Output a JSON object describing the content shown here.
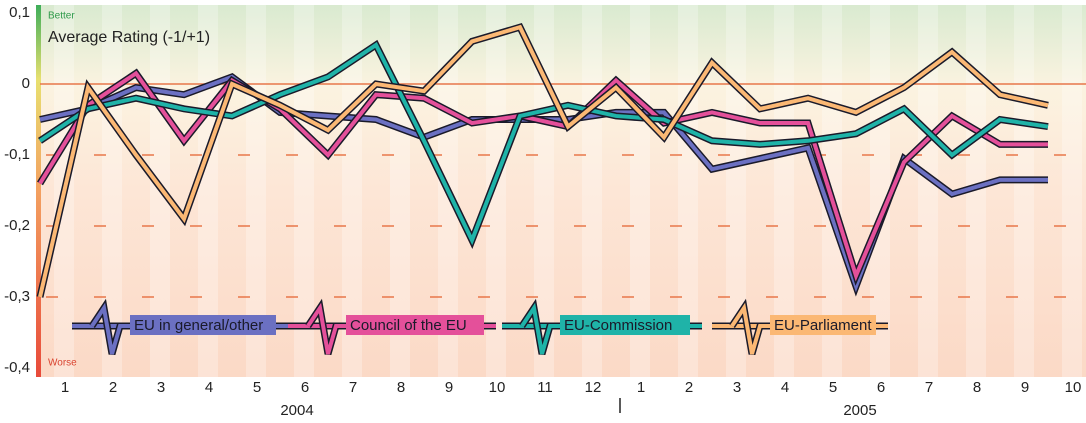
{
  "chart_data": {
    "type": "line",
    "title": "Average Rating (-1/+1)",
    "top_label": "Better",
    "bottom_label": "Worse",
    "categories": [
      "1",
      "2",
      "3",
      "4",
      "5",
      "6",
      "7",
      "8",
      "9",
      "10",
      "11",
      "12",
      "1",
      "2",
      "3",
      "4",
      "5",
      "6",
      "7",
      "8",
      "9",
      "10"
    ],
    "years": [
      "2004",
      "2005"
    ],
    "series": [
      {
        "name": "EU in general/other",
        "color": "#6b70c2",
        "values": [
          -0.05,
          -0.035,
          -0.005,
          -0.015,
          0.01,
          -0.04,
          -0.045,
          -0.05,
          -0.075,
          -0.05,
          -0.05,
          -0.05,
          -0.04,
          -0.04,
          -0.12,
          -0.105,
          -0.09,
          -0.285,
          -0.105,
          -0.155,
          -0.135,
          -0.135
        ]
      },
      {
        "name": "Council of the EU",
        "color": "#e4509a",
        "values": [
          -0.14,
          -0.03,
          0.015,
          -0.08,
          0.005,
          -0.035,
          -0.1,
          -0.015,
          -0.02,
          -0.055,
          -0.045,
          -0.06,
          0.005,
          -0.055,
          -0.04,
          -0.055,
          -0.055,
          -0.27,
          -0.11,
          -0.045,
          -0.085,
          -0.085
        ]
      },
      {
        "name": "EU-Commission",
        "color": "#1fb3a8",
        "values": [
          -0.08,
          -0.035,
          -0.02,
          -0.035,
          -0.045,
          -0.015,
          0.01,
          0.055,
          -0.08,
          -0.22,
          -0.045,
          -0.03,
          -0.045,
          -0.05,
          -0.08,
          -0.085,
          -0.08,
          -0.07,
          -0.035,
          -0.1,
          -0.05,
          -0.06
        ]
      },
      {
        "name": "EU-Parliament",
        "color": "#fbb874",
        "values": [
          -0.3,
          -0.005,
          -0.1,
          -0.19,
          0.0,
          -0.03,
          -0.065,
          0.0,
          -0.01,
          0.06,
          0.08,
          -0.06,
          -0.005,
          -0.075,
          0.03,
          -0.035,
          -0.02,
          -0.04,
          -0.005,
          0.045,
          -0.015,
          -0.03
        ]
      }
    ],
    "ylim": [
      -0.4,
      0.1
    ],
    "yticks": [
      {
        "value": 0.1,
        "label": "0,1"
      },
      0,
      {
        "value": -0.1,
        "label": "-0,1"
      },
      {
        "value": -0.2,
        "label": "-0,2"
      },
      {
        "value": -0.3,
        "label": "-0,3"
      },
      {
        "value": -0.4,
        "label": "-0,4"
      }
    ],
    "grid": true
  }
}
